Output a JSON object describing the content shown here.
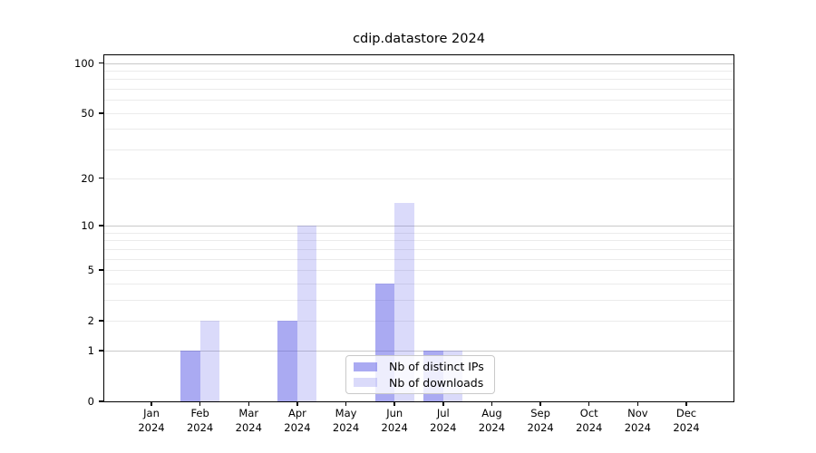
{
  "title": "cdip.datastore 2024",
  "chart_data": {
    "type": "bar",
    "title": "cdip.datastore 2024",
    "x_tick_months": [
      "Jan",
      "Feb",
      "Mar",
      "Apr",
      "May",
      "Jun",
      "Jul",
      "Aug",
      "Sep",
      "Oct",
      "Nov",
      "Dec"
    ],
    "x_tick_year": "2024",
    "series": [
      {
        "name": "Nb of distinct IPs",
        "color": "rgba(85,85,230,0.5)",
        "values": [
          0,
          1,
          0,
          2,
          0,
          4,
          1,
          0,
          0,
          0,
          0,
          0
        ]
      },
      {
        "name": "Nb of downloads",
        "color": "rgba(85,85,230,0.22)",
        "values": [
          0,
          2,
          0,
          10,
          0,
          14,
          1,
          0,
          0,
          0,
          0,
          0
        ]
      }
    ],
    "yscale": "log1p",
    "ylim": [
      0,
      112.6
    ],
    "y_ticks": [
      {
        "value": 0,
        "label": "0"
      },
      {
        "value": 1,
        "label": "1"
      },
      {
        "value": 2,
        "label": "2"
      },
      {
        "value": 5,
        "label": "5"
      },
      {
        "value": 10,
        "label": "10"
      },
      {
        "value": 20,
        "label": "20"
      },
      {
        "value": 50,
        "label": "50"
      },
      {
        "value": 100,
        "label": "100"
      }
    ],
    "grid": {
      "major_values": [
        1,
        10,
        100
      ],
      "minor_values": [
        2,
        3,
        4,
        5,
        6,
        7,
        8,
        9,
        20,
        30,
        40,
        50,
        60,
        70,
        80,
        90
      ]
    },
    "legend": {
      "location": "lower center",
      "items": [
        {
          "label": "Nb of distinct IPs",
          "color": "rgba(85,85,230,0.5)"
        },
        {
          "label": "Nb of downloads",
          "color": "rgba(85,85,230,0.22)"
        }
      ]
    },
    "background_color": "#ffffff"
  }
}
